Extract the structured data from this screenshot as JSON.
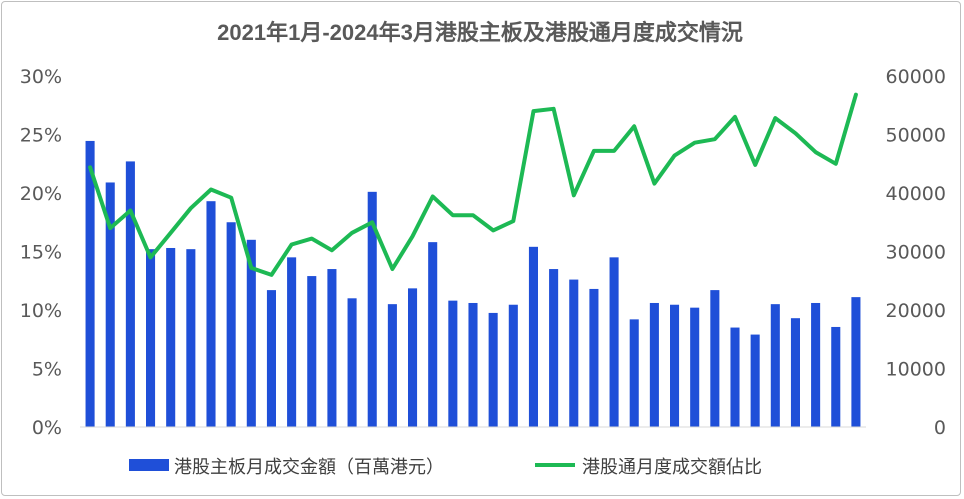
{
  "chart_data": {
    "type": "bar+line",
    "title": "2021年1月-2024年3月港股主板及港股通月度成交情況",
    "left_axis": {
      "ticks": [
        "0%",
        "5%",
        "10%",
        "15%",
        "20%",
        "25%",
        "30%"
      ],
      "ylim": [
        0,
        30
      ]
    },
    "right_axis": {
      "ticks": [
        "0",
        "10000",
        "20000",
        "30000",
        "40000",
        "50000",
        "60000"
      ],
      "ylim": [
        0,
        60000
      ]
    },
    "categories_count": 39,
    "series": [
      {
        "name": "港股主板月成交金額（百萬港元）",
        "type": "bar",
        "axis": "right",
        "color": "#1f4fd8",
        "values": [
          48900,
          41800,
          45400,
          30400,
          30600,
          30400,
          38600,
          35000,
          32000,
          23400,
          29000,
          25800,
          27000,
          22000,
          40200,
          21000,
          23700,
          31600,
          21600,
          21200,
          19500,
          20900,
          30800,
          27000,
          25200,
          23600,
          29000,
          18400,
          21200,
          20900,
          20400,
          23400,
          17000,
          15800,
          21000,
          18600,
          21200,
          17100,
          22200
        ]
      },
      {
        "name": "港股通月度成交額佔比",
        "type": "line",
        "axis": "left",
        "color": "#1db954",
        "values": [
          22.2,
          17.0,
          18.5,
          14.5,
          16.6,
          18.7,
          20.3,
          19.6,
          13.6,
          13.0,
          15.6,
          16.1,
          15.1,
          16.6,
          17.5,
          13.5,
          16.3,
          19.7,
          18.1,
          18.1,
          16.8,
          17.6,
          27.0,
          27.2,
          19.8,
          23.6,
          23.6,
          25.7,
          20.8,
          23.2,
          24.3,
          24.6,
          26.5,
          22.4,
          26.4,
          25.1,
          23.5,
          22.5,
          28.4
        ]
      }
    ],
    "grid": false,
    "legend": "bottom"
  }
}
